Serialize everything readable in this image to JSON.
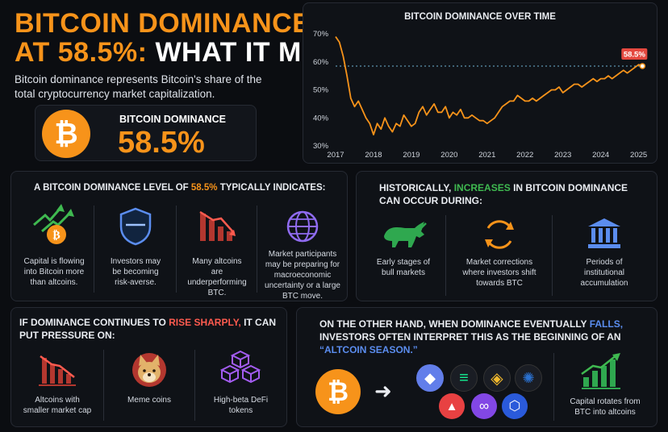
{
  "header": {
    "title_line1": "BITCOIN DOMINANCE",
    "title_line2_highlight": "AT 58.5%:",
    "title_line2_rest": "WHAT IT MEANS",
    "subtitle": "Bitcoin dominance represents Bitcoin's share of the total cryptocurrency market capitalization."
  },
  "kpi": {
    "label": "BITCOIN DOMINANCE",
    "value": "58.5%",
    "coin_symbol": "₿"
  },
  "chart_data": {
    "type": "line",
    "title": "BITCOIN DOMINANCE OVER TIME",
    "xlabel": "",
    "ylabel": "",
    "x": [
      2017.0,
      2017.1,
      2017.2,
      2017.3,
      2017.4,
      2017.5,
      2017.6,
      2017.7,
      2017.8,
      2017.9,
      2018.0,
      2018.1,
      2018.2,
      2018.3,
      2018.4,
      2018.5,
      2018.6,
      2018.7,
      2018.8,
      2018.9,
      2019.0,
      2019.1,
      2019.2,
      2019.3,
      2019.4,
      2019.5,
      2019.6,
      2019.7,
      2019.8,
      2019.9,
      2020.0,
      2020.1,
      2020.2,
      2020.3,
      2020.4,
      2020.5,
      2020.6,
      2020.7,
      2020.8,
      2020.9,
      2021.0,
      2021.1,
      2021.2,
      2021.3,
      2021.4,
      2021.5,
      2021.6,
      2021.7,
      2021.8,
      2021.9,
      2022.0,
      2022.1,
      2022.2,
      2022.3,
      2022.4,
      2022.5,
      2022.6,
      2022.7,
      2022.8,
      2022.9,
      2023.0,
      2023.1,
      2023.2,
      2023.3,
      2023.4,
      2023.5,
      2023.6,
      2023.7,
      2023.8,
      2023.9,
      2024.0,
      2024.1,
      2024.2,
      2024.3,
      2024.4,
      2024.5,
      2024.6,
      2024.7,
      2024.8,
      2024.9,
      2025.0,
      2025.1
    ],
    "y": [
      69,
      67,
      62,
      55,
      47,
      44,
      46,
      43,
      40,
      38,
      34,
      38,
      36,
      40,
      37,
      35,
      38,
      37,
      41,
      39,
      37,
      38,
      42,
      44,
      41,
      43,
      45,
      42,
      42,
      44,
      40,
      42,
      41,
      43,
      40,
      40,
      41,
      40,
      39,
      39,
      38,
      39,
      40,
      42,
      44,
      45,
      46,
      46,
      48,
      47,
      46,
      46,
      47,
      46,
      47,
      48,
      49,
      50,
      50,
      51,
      49,
      50,
      51,
      52,
      52,
      51,
      52,
      53,
      54,
      53,
      54,
      54,
      55,
      54,
      55,
      56,
      57,
      56,
      57,
      58,
      59,
      58.5
    ],
    "x_ticks": [
      "2017",
      "2018",
      "2019",
      "2020",
      "2021",
      "2022",
      "2023",
      "2024",
      "2025"
    ],
    "y_ticks": [
      "70%",
      "60%",
      "50%",
      "40%",
      "30%"
    ],
    "ylim": [
      30,
      70
    ],
    "xlim": [
      2017,
      2025.2
    ],
    "reference_value": 58.5,
    "annotation": "58.5%",
    "line_color": "#f7931a",
    "grid": false
  },
  "indicates": {
    "title_prefix": "A BITCOIN DOMINANCE LEVEL OF",
    "title_highlight": "58.5%",
    "title_suffix": "TYPICALLY INDICATES:",
    "items": [
      {
        "text": "Capital is flowing into Bitcoin more than altcoins.",
        "icon": "arrows-up-btc-icon"
      },
      {
        "text": "Investors may be becoming risk-averse.",
        "icon": "shield-icon"
      },
      {
        "text": "Many altcoins are underperforming BTC.",
        "icon": "declining-chart-icon"
      },
      {
        "text": "Market participants may be preparing for macroeconomic uncertainty or a large BTC move.",
        "icon": "globe-icon"
      }
    ]
  },
  "historically": {
    "title_prefix": "HISTORICALLY,",
    "title_highlight": "INCREASES",
    "title_suffix": "IN BITCOIN DOMINANCE CAN OCCUR DURING:",
    "items": [
      {
        "text": "Early stages of bull markets",
        "icon": "bull-icon"
      },
      {
        "text": "Market corrections where investors shift towards BTC",
        "icon": "cycle-arrows-icon"
      },
      {
        "text": "Periods of institutional accumulation",
        "icon": "bank-icon"
      }
    ]
  },
  "pressure": {
    "title_prefix": "IF DOMINANCE CONTINUES TO",
    "title_highlight": "RISE SHARPLY,",
    "title_suffix": "IT CAN PUT PRESSURE ON:",
    "items": [
      {
        "text": "Altcoins with smaller market cap",
        "icon": "down-bar-chart-icon"
      },
      {
        "text": "Meme coins",
        "icon": "doge-icon"
      },
      {
        "text": "High-beta DeFi tokens",
        "icon": "cubes-icon"
      }
    ]
  },
  "altseason": {
    "title_prefix": "ON THE OTHER HAND, WHEN DOMINANCE EVENTUALLY",
    "title_highlight": "FALLS,",
    "title_middle": "INVESTORS OFTEN INTERPRET THIS AS THE BEGINNING OF AN",
    "title_quote": "“ALTCOIN SEASON.”",
    "caption": "Capital rotates from BTC into altcoins",
    "arrow": "➜",
    "coins": [
      {
        "icon": "ethereum-icon",
        "color": "#627eea",
        "glyph": "◆"
      },
      {
        "icon": "solana-icon",
        "color": "#14f195",
        "glyph": "≡"
      },
      {
        "icon": "bnb-icon",
        "color": "#f3ba2f",
        "glyph": "◈"
      },
      {
        "icon": "cardano-icon",
        "color": "#2a71d0",
        "glyph": "✺"
      },
      {
        "icon": "avalanche-icon",
        "color": "#e84142",
        "glyph": "▲"
      },
      {
        "icon": "polygon-icon",
        "color": "#8247e5",
        "glyph": "∞"
      },
      {
        "icon": "chainlink-icon",
        "color": "#2a5ada",
        "glyph": "⬡"
      }
    ]
  },
  "colors": {
    "accent": "#f7931a",
    "green": "#3fb950",
    "red": "#e5483f",
    "blue": "#5b8def",
    "purple": "#8f6bf0"
  }
}
